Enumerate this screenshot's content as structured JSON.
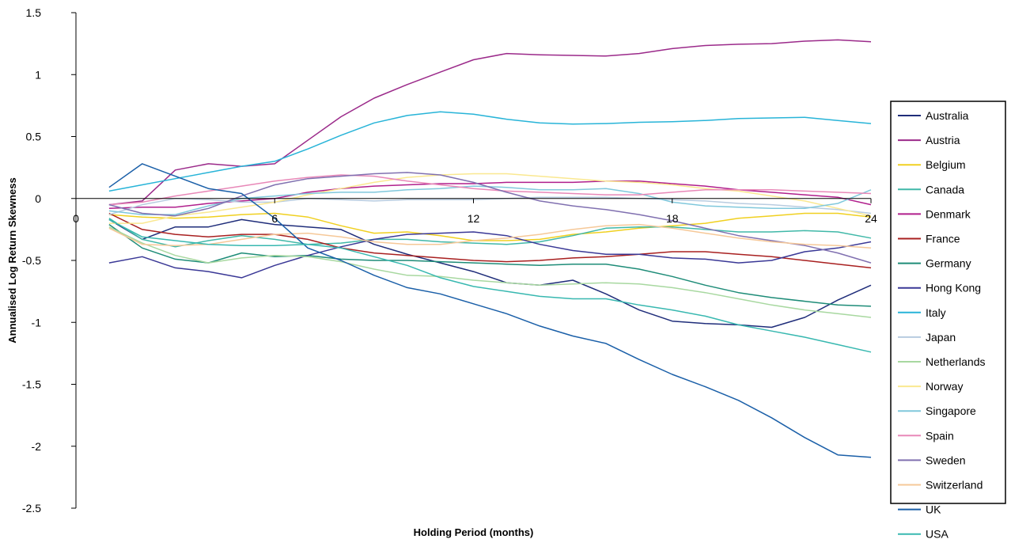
{
  "chart_data": {
    "type": "line",
    "title": "",
    "xlabel": "Holding Period (months)",
    "ylabel": "Annualised Log Return Skewness",
    "xlim": [
      0,
      24
    ],
    "ylim": [
      -2.5,
      1.5
    ],
    "x_ticks": [
      {
        "value": 0,
        "label": "0"
      },
      {
        "value": 6,
        "label": "6"
      },
      {
        "value": 12,
        "label": "12"
      },
      {
        "value": 18,
        "label": "18"
      },
      {
        "value": 24,
        "label": "24"
      }
    ],
    "y_ticks": [
      {
        "value": 1.5,
        "label": "1.5"
      },
      {
        "value": 1,
        "label": "1"
      },
      {
        "value": 0.5,
        "label": "0.5"
      },
      {
        "value": 0,
        "label": "0"
      },
      {
        "value": -0.5,
        "label": "-0.5"
      },
      {
        "value": -1,
        "label": "-1"
      },
      {
        "value": -1.5,
        "label": "-1.5"
      },
      {
        "value": -2,
        "label": "-2"
      },
      {
        "value": -2.5,
        "label": "-2.5"
      }
    ],
    "grid": false,
    "legend_position": "right",
    "x": [
      1,
      2,
      3,
      4,
      5,
      6,
      7,
      8,
      9,
      10,
      11,
      12,
      13,
      14,
      15,
      16,
      17,
      18,
      19,
      20,
      21,
      22,
      23,
      24
    ],
    "series": [
      {
        "name": "Australia",
        "color": "#1f2d7a",
        "values": [
          -0.17,
          -0.33,
          -0.23,
          -0.23,
          -0.17,
          -0.21,
          -0.23,
          -0.25,
          -0.37,
          -0.45,
          -0.52,
          -0.59,
          -0.68,
          -0.7,
          -0.66,
          -0.77,
          -0.9,
          -0.99,
          -1.01,
          -1.02,
          -1.04,
          -0.96,
          -0.82,
          -0.7
        ]
      },
      {
        "name": "Austria",
        "color": "#9b2a8a",
        "values": [
          -0.05,
          -0.02,
          0.23,
          0.28,
          0.26,
          0.28,
          0.47,
          0.66,
          0.81,
          0.92,
          1.02,
          1.12,
          1.17,
          1.16,
          1.155,
          1.15,
          1.17,
          1.21,
          1.235,
          1.245,
          1.25,
          1.27,
          1.28,
          1.265
        ]
      },
      {
        "name": "Belgium",
        "color": "#f0d020",
        "values": [
          -0.13,
          -0.15,
          -0.16,
          -0.15,
          -0.13,
          -0.12,
          -0.15,
          -0.22,
          -0.28,
          -0.27,
          -0.3,
          -0.34,
          -0.34,
          -0.33,
          -0.29,
          -0.27,
          -0.24,
          -0.22,
          -0.2,
          -0.16,
          -0.14,
          -0.12,
          -0.12,
          -0.15
        ]
      },
      {
        "name": "Canada",
        "color": "#40b8a8",
        "values": [
          -0.16,
          -0.33,
          -0.39,
          -0.34,
          -0.3,
          -0.33,
          -0.37,
          -0.36,
          -0.33,
          -0.33,
          -0.35,
          -0.36,
          -0.37,
          -0.35,
          -0.3,
          -0.24,
          -0.23,
          -0.23,
          -0.25,
          -0.27,
          -0.27,
          -0.26,
          -0.27,
          -0.32
        ]
      },
      {
        "name": "Denmark",
        "color": "#b01f8c",
        "values": [
          -0.08,
          -0.07,
          -0.07,
          -0.04,
          -0.02,
          0.0,
          0.05,
          0.08,
          0.1,
          0.11,
          0.12,
          0.12,
          0.13,
          0.13,
          0.13,
          0.14,
          0.14,
          0.12,
          0.1,
          0.07,
          0.05,
          0.03,
          0.01,
          -0.05
        ]
      },
      {
        "name": "France",
        "color": "#a82020",
        "values": [
          -0.12,
          -0.25,
          -0.29,
          -0.31,
          -0.29,
          -0.29,
          -0.33,
          -0.4,
          -0.44,
          -0.46,
          -0.48,
          -0.5,
          -0.51,
          -0.5,
          -0.48,
          -0.47,
          -0.45,
          -0.43,
          -0.43,
          -0.45,
          -0.47,
          -0.5,
          -0.53,
          -0.56
        ]
      },
      {
        "name": "Germany",
        "color": "#1e8c78",
        "values": [
          -0.21,
          -0.4,
          -0.49,
          -0.52,
          -0.44,
          -0.47,
          -0.46,
          -0.49,
          -0.5,
          -0.5,
          -0.51,
          -0.52,
          -0.53,
          -0.54,
          -0.53,
          -0.53,
          -0.57,
          -0.63,
          -0.7,
          -0.76,
          -0.8,
          -0.83,
          -0.86,
          -0.87
        ]
      },
      {
        "name": "Hong Kong",
        "color": "#3a3896",
        "values": [
          -0.52,
          -0.47,
          -0.56,
          -0.59,
          -0.64,
          -0.54,
          -0.46,
          -0.39,
          -0.33,
          -0.29,
          -0.28,
          -0.27,
          -0.3,
          -0.37,
          -0.42,
          -0.45,
          -0.45,
          -0.48,
          -0.49,
          -0.52,
          -0.5,
          -0.43,
          -0.4,
          -0.35
        ]
      },
      {
        "name": "Italy",
        "color": "#28b4d8",
        "values": [
          0.06,
          0.11,
          0.16,
          0.21,
          0.26,
          0.3,
          0.4,
          0.51,
          0.61,
          0.67,
          0.7,
          0.68,
          0.64,
          0.61,
          0.6,
          0.605,
          0.615,
          0.62,
          0.63,
          0.645,
          0.65,
          0.655,
          0.63,
          0.605
        ]
      },
      {
        "name": "Japan",
        "color": "#b8cce0",
        "values": [
          -0.13,
          -0.05,
          0.0,
          -0.01,
          -0.03,
          -0.03,
          0.0,
          -0.01,
          -0.02,
          -0.01,
          -0.01,
          -0.01,
          0.0,
          0.01,
          0.01,
          0.01,
          0.0,
          -0.01,
          -0.02,
          -0.04,
          -0.05,
          -0.07,
          -0.09,
          -0.12
        ]
      },
      {
        "name": "Netherlands",
        "color": "#a8d8a0",
        "values": [
          -0.23,
          -0.36,
          -0.46,
          -0.52,
          -0.48,
          -0.46,
          -0.47,
          -0.51,
          -0.57,
          -0.62,
          -0.63,
          -0.66,
          -0.68,
          -0.7,
          -0.69,
          -0.68,
          -0.69,
          -0.72,
          -0.76,
          -0.81,
          -0.86,
          -0.9,
          -0.93,
          -0.96
        ]
      },
      {
        "name": "Norway",
        "color": "#fae890",
        "values": [
          -0.2,
          -0.2,
          -0.14,
          -0.11,
          -0.07,
          -0.03,
          0.03,
          0.08,
          0.13,
          0.17,
          0.19,
          0.2,
          0.2,
          0.18,
          0.16,
          0.14,
          0.13,
          0.11,
          0.08,
          0.06,
          0.02,
          -0.02,
          -0.08,
          -0.14
        ]
      },
      {
        "name": "Singapore",
        "color": "#80c8dc",
        "values": [
          -0.1,
          -0.13,
          -0.13,
          -0.06,
          0.0,
          0.02,
          0.04,
          0.05,
          0.05,
          0.07,
          0.08,
          0.1,
          0.09,
          0.07,
          0.07,
          0.08,
          0.04,
          -0.03,
          -0.06,
          -0.07,
          -0.08,
          -0.08,
          -0.04,
          0.07
        ]
      },
      {
        "name": "Spain",
        "color": "#e888b8",
        "values": [
          -0.05,
          -0.03,
          0.02,
          0.06,
          0.1,
          0.14,
          0.17,
          0.19,
          0.18,
          0.14,
          0.11,
          0.08,
          0.06,
          0.05,
          0.04,
          0.03,
          0.03,
          0.05,
          0.07,
          0.07,
          0.07,
          0.06,
          0.05,
          0.04
        ]
      },
      {
        "name": "Sweden",
        "color": "#8070b0",
        "values": [
          -0.05,
          -0.12,
          -0.14,
          -0.08,
          0.02,
          0.11,
          0.16,
          0.18,
          0.2,
          0.21,
          0.19,
          0.13,
          0.05,
          -0.02,
          -0.06,
          -0.09,
          -0.13,
          -0.18,
          -0.24,
          -0.3,
          -0.34,
          -0.38,
          -0.44,
          -0.52
        ]
      },
      {
        "name": "Switzerland",
        "color": "#f6c898",
        "values": [
          -0.24,
          -0.37,
          -0.38,
          -0.37,
          -0.33,
          -0.29,
          -0.28,
          -0.31,
          -0.35,
          -0.37,
          -0.37,
          -0.34,
          -0.32,
          -0.29,
          -0.25,
          -0.22,
          -0.21,
          -0.24,
          -0.28,
          -0.32,
          -0.35,
          -0.37,
          -0.38,
          -0.4
        ]
      },
      {
        "name": "UK",
        "color": "#1a5fa8",
        "values": [
          0.09,
          0.28,
          0.18,
          0.08,
          0.04,
          -0.16,
          -0.4,
          -0.5,
          -0.62,
          -0.72,
          -0.77,
          -0.85,
          -0.93,
          -1.03,
          -1.11,
          -1.17,
          -1.3,
          -1.42,
          -1.52,
          -1.63,
          -1.77,
          -1.93,
          -2.07,
          -2.09
        ]
      },
      {
        "name": "USA",
        "color": "#38b8b0",
        "values": [
          -0.17,
          -0.31,
          -0.34,
          -0.37,
          -0.38,
          -0.38,
          -0.37,
          -0.4,
          -0.47,
          -0.54,
          -0.64,
          -0.71,
          -0.75,
          -0.79,
          -0.81,
          -0.81,
          -0.86,
          -0.9,
          -0.95,
          -1.02,
          -1.07,
          -1.12,
          -1.18,
          -1.24
        ]
      }
    ]
  }
}
